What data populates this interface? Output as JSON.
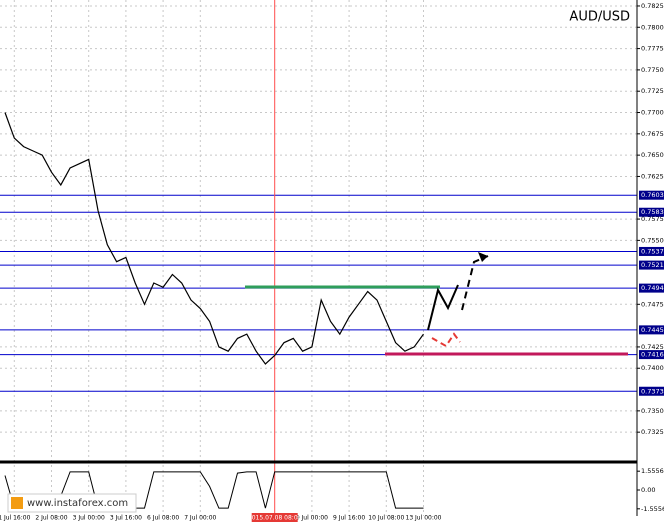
{
  "chart_data": {
    "type": "line",
    "title": "AUD/USD",
    "color": "#000000",
    "values": [
      0.77,
      0.767,
      0.766,
      0.7655,
      0.765,
      0.763,
      0.7615,
      0.7635,
      0.764,
      0.7645,
      0.7585,
      0.7545,
      0.7525,
      0.753,
      0.75,
      0.7475,
      0.75,
      0.7495,
      0.751,
      0.75,
      0.748,
      0.747,
      0.7455,
      0.7425,
      0.742,
      0.7435,
      0.744,
      0.742,
      0.7405,
      0.7415,
      0.743,
      0.7435,
      0.742,
      0.7425,
      0.748,
      0.7455,
      0.744,
      0.746,
      0.7475,
      0.749,
      0.748,
      0.7455,
      0.743,
      0.742,
      0.7425,
      0.744
    ],
    "ylim": [
      0.729,
      0.7832
    ],
    "yticks": [
      0.7825,
      {
        "value": 0.78,
        "label": "0.7800"
      },
      0.7775,
      {
        "value": 0.775,
        "label": "0.7750"
      },
      0.7725,
      {
        "value": 0.77,
        "label": "0.7700"
      },
      0.7675,
      {
        "value": 0.765,
        "label": "0.7650"
      },
      0.7625,
      0.7575,
      {
        "value": 0.755,
        "label": "0.7550"
      },
      0.7475,
      0.7425,
      {
        "value": 0.74,
        "label": "0.7400"
      },
      {
        "value": 0.735,
        "label": "0.7350"
      },
      0.7325
    ],
    "levels": [
      0.7603,
      0.7583,
      0.7537,
      0.7521,
      0.7494,
      0.7445,
      0.7416,
      0.7373
    ],
    "level_color": "#0000cc",
    "xticks": [
      {
        "value": 1,
        "label": "1 Jul 16:00"
      },
      {
        "value": 5,
        "label": "2 Jul 08:00"
      },
      {
        "value": 9,
        "label": "3 Jul 00:00"
      },
      {
        "value": 13,
        "label": "3 Jul 16:00"
      },
      {
        "value": 17,
        "label": "6 Jul 08:00"
      },
      {
        "value": 21,
        "label": "7 Jul 00:00"
      },
      {
        "value": 33,
        "label": "9 Jul 00:00"
      },
      {
        "value": 37,
        "label": "9 Jul 16:00"
      },
      {
        "value": 41,
        "label": "10 Jul 08:00"
      },
      {
        "value": 45,
        "label": "13 Jul 00:00"
      }
    ],
    "cursor": {
      "value": 29,
      "label": "2015.07.08 08:00"
    },
    "grid": true,
    "oscillator": {
      "values": [
        1.2,
        -1.5,
        -1.5,
        -1.5,
        -1.5,
        -1.5,
        -0.5,
        1.5,
        1.5,
        1.5,
        -1.5,
        -1.5,
        -1.5,
        -1.5,
        -1.5,
        -1.5,
        1.5,
        1.5,
        1.5,
        1.5,
        1.5,
        1.5,
        0.3,
        -1.5,
        -1.5,
        1.4,
        1.5,
        1.5,
        -1.5,
        1.5,
        1.5,
        1.5,
        1.5,
        1.5,
        1.5,
        1.5,
        1.5,
        1.5,
        1.5,
        1.5,
        1.5,
        1.5,
        -1.5,
        -1.5,
        -1.5,
        -1.5
      ],
      "ylim": [
        -2.15,
        2.15
      ],
      "yticks": [
        1.5556,
        {
          "value": 0,
          "label": "0.00"
        },
        -1.5556
      ]
    },
    "watermark": "www.instaforex.com"
  }
}
